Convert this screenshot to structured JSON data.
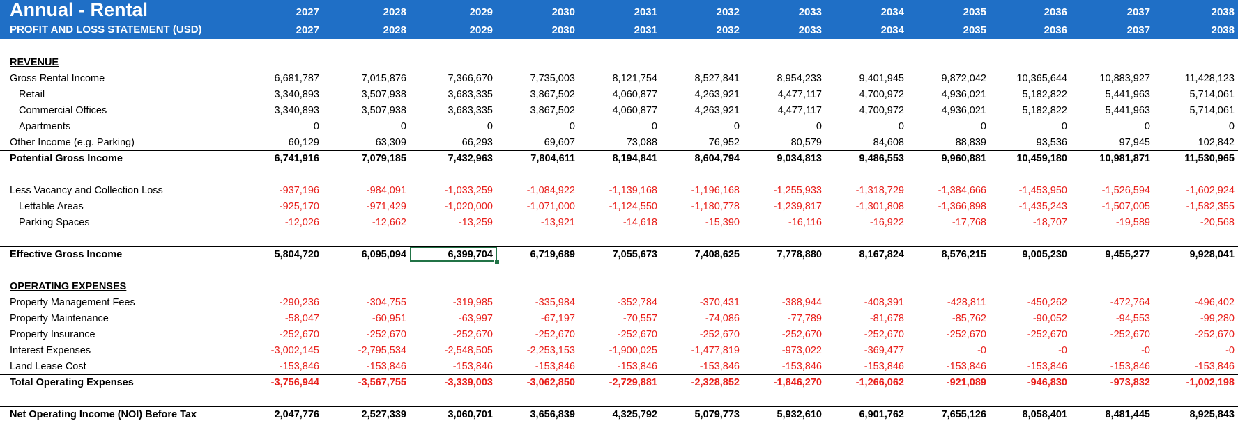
{
  "title": "Annual - Rental",
  "subtitle": "PROFIT AND LOSS STATEMENT (USD)",
  "years_top": [
    "2027",
    "2028",
    "2029",
    "2030",
    "2031",
    "2032",
    "2033",
    "2034",
    "2035",
    "2036",
    "2037",
    "2038"
  ],
  "years_bottom": [
    "2027",
    "2028",
    "2029",
    "2030",
    "2031",
    "2032",
    "2033",
    "2034",
    "2035",
    "2036",
    "2037",
    "2038"
  ],
  "colors": {
    "header_bg": "#1F6FC6",
    "negative": "#E8201C",
    "selection": "#217346"
  },
  "selected_cell": "6,399,704",
  "rows": [
    {
      "label": "REVENUE",
      "style": "section",
      "values": []
    },
    {
      "label": "Gross Rental Income",
      "style": "normal",
      "values": [
        "6,681,787",
        "7,015,876",
        "7,366,670",
        "7,735,003",
        "8,121,754",
        "8,527,841",
        "8,954,233",
        "9,401,945",
        "9,872,042",
        "10,365,644",
        "10,883,927",
        "11,428,123"
      ]
    },
    {
      "label": "Retail",
      "style": "indent",
      "values": [
        "3,340,893",
        "3,507,938",
        "3,683,335",
        "3,867,502",
        "4,060,877",
        "4,263,921",
        "4,477,117",
        "4,700,972",
        "4,936,021",
        "5,182,822",
        "5,441,963",
        "5,714,061"
      ]
    },
    {
      "label": "Commercial Offices",
      "style": "indent",
      "values": [
        "3,340,893",
        "3,507,938",
        "3,683,335",
        "3,867,502",
        "4,060,877",
        "4,263,921",
        "4,477,117",
        "4,700,972",
        "4,936,021",
        "5,182,822",
        "5,441,963",
        "5,714,061"
      ]
    },
    {
      "label": "Apartments",
      "style": "indent",
      "values": [
        "0",
        "0",
        "0",
        "0",
        "0",
        "0",
        "0",
        "0",
        "0",
        "0",
        "0",
        "0"
      ]
    },
    {
      "label": "Other Income (e.g. Parking)",
      "style": "normal",
      "values": [
        "60,129",
        "63,309",
        "66,293",
        "69,607",
        "73,088",
        "76,952",
        "80,579",
        "84,608",
        "88,839",
        "93,536",
        "97,945",
        "102,842"
      ]
    },
    {
      "label": "Potential Gross Income",
      "style": "bold",
      "values": [
        "6,741,916",
        "7,079,185",
        "7,432,963",
        "7,804,611",
        "8,194,841",
        "8,604,794",
        "9,034,813",
        "9,486,553",
        "9,960,881",
        "10,459,180",
        "10,981,871",
        "11,530,965"
      ]
    },
    {
      "label": "",
      "style": "blank",
      "values": []
    },
    {
      "label": "Less Vacancy and Collection Loss",
      "style": "normal",
      "values": [
        "-937,196",
        "-984,091",
        "-1,033,259",
        "-1,084,922",
        "-1,139,168",
        "-1,196,168",
        "-1,255,933",
        "-1,318,729",
        "-1,384,666",
        "-1,453,950",
        "-1,526,594",
        "-1,602,924"
      ]
    },
    {
      "label": "Lettable Areas",
      "style": "indent",
      "values": [
        "-925,170",
        "-971,429",
        "-1,020,000",
        "-1,071,000",
        "-1,124,550",
        "-1,180,778",
        "-1,239,817",
        "-1,301,808",
        "-1,366,898",
        "-1,435,243",
        "-1,507,005",
        "-1,582,355"
      ]
    },
    {
      "label": "Parking Spaces",
      "style": "indent",
      "values": [
        "-12,026",
        "-12,662",
        "-13,259",
        "-13,921",
        "-14,618",
        "-15,390",
        "-16,116",
        "-16,922",
        "-17,768",
        "-18,707",
        "-19,589",
        "-20,568"
      ]
    },
    {
      "label": "",
      "style": "blank",
      "values": []
    },
    {
      "label": "Effective Gross Income",
      "style": "bold",
      "values": [
        "5,804,720",
        "6,095,094",
        "6,399,704",
        "6,719,689",
        "7,055,673",
        "7,408,625",
        "7,778,880",
        "8,167,824",
        "8,576,215",
        "9,005,230",
        "9,455,277",
        "9,928,041"
      ]
    },
    {
      "label": "",
      "style": "blank",
      "values": []
    },
    {
      "label": "OPERATING EXPENSES",
      "style": "section",
      "values": []
    },
    {
      "label": "Property Management Fees",
      "style": "normal",
      "values": [
        "-290,236",
        "-304,755",
        "-319,985",
        "-335,984",
        "-352,784",
        "-370,431",
        "-388,944",
        "-408,391",
        "-428,811",
        "-450,262",
        "-472,764",
        "-496,402"
      ]
    },
    {
      "label": "Property Maintenance",
      "style": "normal",
      "values": [
        "-58,047",
        "-60,951",
        "-63,997",
        "-67,197",
        "-70,557",
        "-74,086",
        "-77,789",
        "-81,678",
        "-85,762",
        "-90,052",
        "-94,553",
        "-99,280"
      ]
    },
    {
      "label": "Property Insurance",
      "style": "normal",
      "values": [
        "-252,670",
        "-252,670",
        "-252,670",
        "-252,670",
        "-252,670",
        "-252,670",
        "-252,670",
        "-252,670",
        "-252,670",
        "-252,670",
        "-252,670",
        "-252,670"
      ]
    },
    {
      "label": "Interest Expenses",
      "style": "normal",
      "values": [
        "-3,002,145",
        "-2,795,534",
        "-2,548,505",
        "-2,253,153",
        "-1,900,025",
        "-1,477,819",
        "-973,022",
        "-369,477",
        "-0",
        "-0",
        "-0",
        "-0"
      ]
    },
    {
      "label": "Land Lease Cost",
      "style": "normal",
      "values": [
        "-153,846",
        "-153,846",
        "-153,846",
        "-153,846",
        "-153,846",
        "-153,846",
        "-153,846",
        "-153,846",
        "-153,846",
        "-153,846",
        "-153,846",
        "-153,846"
      ]
    },
    {
      "label": "Total Operating Expenses",
      "style": "bold",
      "values": [
        "-3,756,944",
        "-3,567,755",
        "-3,339,003",
        "-3,062,850",
        "-2,729,881",
        "-2,328,852",
        "-1,846,270",
        "-1,266,062",
        "-921,089",
        "-946,830",
        "-973,832",
        "-1,002,198"
      ]
    },
    {
      "label": "",
      "style": "blank",
      "values": []
    },
    {
      "label": "Net Operating Income (NOI) Before Tax",
      "style": "bold",
      "values": [
        "2,047,776",
        "2,527,339",
        "3,060,701",
        "3,656,839",
        "4,325,792",
        "5,079,773",
        "5,932,610",
        "6,901,762",
        "7,655,126",
        "8,058,401",
        "8,481,445",
        "8,925,843"
      ]
    }
  ]
}
